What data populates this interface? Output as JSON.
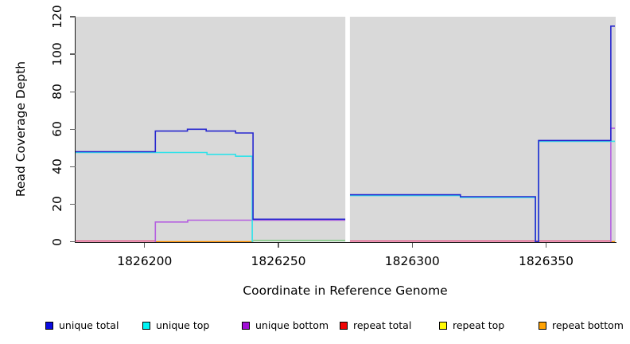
{
  "chart_data": {
    "type": "line",
    "subtype": "step-coverage",
    "title": "",
    "xlabel": "Coordinate in Reference Genome",
    "ylabel": "Read Coverage Depth",
    "xlim": [
      1826174.2,
      1826376
    ],
    "ylim": [
      0,
      120
    ],
    "xticks": [
      "1826200",
      "1826250",
      "1826300",
      "1826350"
    ],
    "xtick_values": [
      1826200,
      1826250,
      1826300,
      1826350
    ],
    "yticks": [
      "0",
      "20",
      "40",
      "60",
      "80",
      "100",
      "120"
    ],
    "ytick_values": [
      0,
      20,
      40,
      60,
      80,
      100,
      120
    ],
    "grid": false,
    "legend_position": "bottom",
    "panel_bg": "#d9d9d9",
    "gap_band": {
      "x1": 1826275.0,
      "x2": 1826276.7,
      "color": "#ffffff"
    },
    "series": [
      {
        "name": "unique total",
        "color": "#2727cf",
        "dy": 0,
        "segments": [
          [
            [
              1826174.2,
              48
            ],
            [
              1826204,
              59
            ],
            [
              1826216,
              60
            ],
            [
              1826223,
              59
            ],
            [
              1826234,
              58
            ],
            [
              1826240.5,
              12
            ],
            [
              1826275.0,
              12
            ]
          ],
          [
            [
              1826276.7,
              25
            ],
            [
              1826318,
              24
            ],
            [
              1826346,
              0
            ],
            [
              1826347.2,
              54
            ],
            [
              1826374.2,
              115
            ],
            [
              1826375.7,
              115
            ]
          ]
        ]
      },
      {
        "name": "unique top",
        "color": "#30e2e9",
        "dy": 1.0,
        "segments": [
          [
            [
              1826174.2,
              48
            ],
            [
              1826223.3,
              47
            ],
            [
              1826234,
              46
            ],
            [
              1826240.2,
              0
            ],
            [
              1826240.8,
              0
            ]
          ],
          [
            [
              1826276.7,
              25
            ],
            [
              1826318,
              24
            ],
            [
              1826346,
              0
            ],
            [
              1826347.2,
              54
            ],
            [
              1826375.7,
              54
            ]
          ]
        ]
      },
      {
        "name": "unique bottom",
        "color": "#b55fe0",
        "dy": 1.2,
        "segments": [
          [
            [
              1826203.8,
              0
            ],
            [
              1826204,
              11
            ],
            [
              1826216.1,
              12
            ],
            [
              1826275.0,
              12
            ]
          ],
          [
            [
              1826374.0,
              0
            ],
            [
              1826374.2,
              61
            ],
            [
              1826375.7,
              61
            ]
          ]
        ]
      },
      {
        "name": "repeat total",
        "color": "#e2497d",
        "dy": 0,
        "segments": []
      },
      {
        "name": "repeat top",
        "color": "#fffa05",
        "dy": 0,
        "segments": []
      },
      {
        "name": "repeat bottom",
        "color": "#ff9100",
        "dy": 0,
        "segments": []
      }
    ],
    "baseline_segments": [
      {
        "x1": 1826174.2,
        "x2": 1826204.0,
        "y": 0.3,
        "color": "#e2497d"
      },
      {
        "x1": 1826204.0,
        "x2": 1826240.5,
        "y": 0.0,
        "color": "#ff9100"
      },
      {
        "x1": 1826240.5,
        "x2": 1826275.0,
        "y": 0.6,
        "color": "#7cc77f"
      },
      {
        "x1": 1826276.7,
        "x2": 1826374.0,
        "y": 0.3,
        "color": "#e2497d"
      },
      {
        "x1": 1826374.0,
        "x2": 1826375.7,
        "y": 0.0,
        "color": "#ff9100"
      }
    ]
  },
  "legend": {
    "items": [
      {
        "label": "unique total",
        "color": "#0b0be0"
      },
      {
        "label": "unique top",
        "color": "#00f5f5"
      },
      {
        "label": "unique bottom",
        "color": "#a10dd6"
      },
      {
        "label": "repeat total",
        "color": "#f00505"
      },
      {
        "label": "repeat top",
        "color": "#fffa05"
      },
      {
        "label": "repeat bottom",
        "color": "#ffa305"
      }
    ]
  }
}
